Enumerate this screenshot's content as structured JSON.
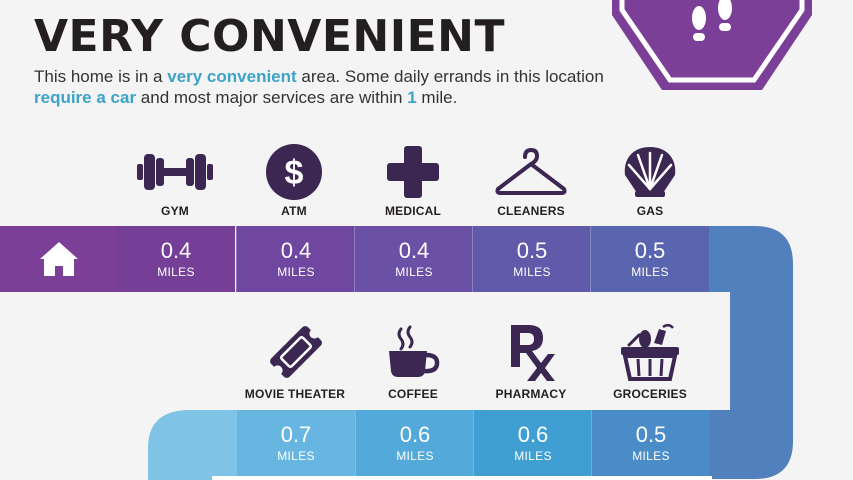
{
  "heading": "VERY CONVENIENT",
  "description": {
    "p1": "This home is in a ",
    "h1": "very convenient",
    "p2": " area. Some daily errands in this location ",
    "h2": "require a car",
    "p3": " and most major services are within ",
    "h3": "1",
    "p4": " mile."
  },
  "colors": {
    "accent": "#3ca3c9",
    "badge": "#7b3f98",
    "icon": "#3b2752"
  },
  "icons": {
    "home": "home-icon",
    "badge": "footprints-icon"
  },
  "row1": [
    {
      "label": "GYM",
      "distance": "0.4",
      "unit": "MILES",
      "icon": "dumbbell-icon"
    },
    {
      "label": "ATM",
      "distance": "0.4",
      "unit": "MILES",
      "icon": "dollar-icon"
    },
    {
      "label": "MEDICAL",
      "distance": "0.4",
      "unit": "MILES",
      "icon": "medical-cross-icon"
    },
    {
      "label": "CLEANERS",
      "distance": "0.5",
      "unit": "MILES",
      "icon": "hanger-icon"
    },
    {
      "label": "GAS",
      "distance": "0.5",
      "unit": "MILES",
      "icon": "shell-icon"
    }
  ],
  "row2": [
    {
      "label": "MOVIE THEATER",
      "distance": "0.7",
      "unit": "MILES",
      "icon": "ticket-icon"
    },
    {
      "label": "COFFEE",
      "distance": "0.6",
      "unit": "MILES",
      "icon": "coffee-cup-icon"
    },
    {
      "label": "PHARMACY",
      "distance": "0.6",
      "unit": "MILES",
      "icon": "rx-icon"
    },
    {
      "label": "GROCERIES",
      "distance": "0.5",
      "unit": "MILES",
      "icon": "basket-icon"
    }
  ]
}
